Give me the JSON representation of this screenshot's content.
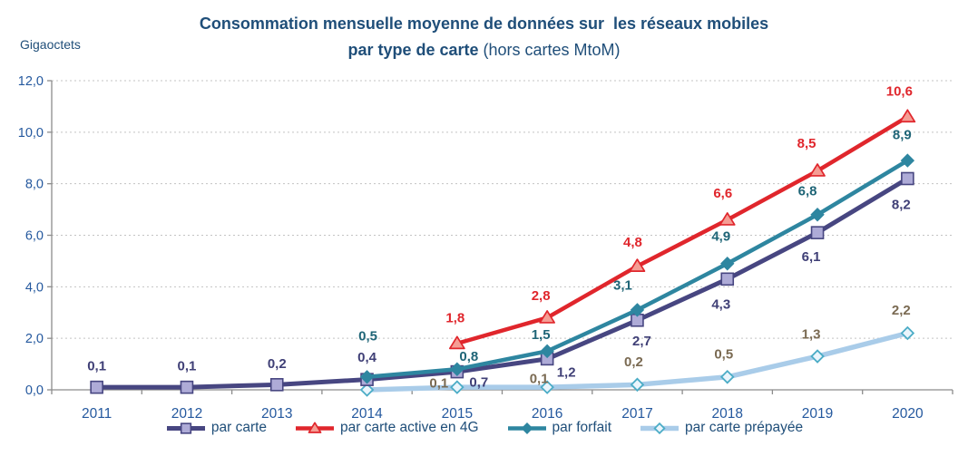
{
  "title": {
    "line1": "Consommation mensuelle moyenne de données sur  les réseaux mobiles",
    "line2_bold": "par type de carte",
    "line2_rest": " (hors cartes MtoM)"
  },
  "y_unit_label": "Gigaoctets",
  "chart_data": {
    "type": "line",
    "title": "Consommation mensuelle moyenne de données sur les réseaux mobiles par type de carte (hors cartes MtoM)",
    "ylabel": "Gigaoctets",
    "ylim": [
      0,
      12
    ],
    "ytick_step": 2,
    "ytick_labels": [
      "12,0",
      "10,0",
      "8,0",
      "6,0",
      "4,0",
      "2,0",
      "0,0"
    ],
    "categories": [
      "2011",
      "2012",
      "2013",
      "2014",
      "2015",
      "2016",
      "2017",
      "2018",
      "2019",
      "2020"
    ],
    "grid": "horizontal-dotted",
    "legend_position": "bottom",
    "series": [
      {
        "name": "par carte",
        "marker": "square",
        "line_color": "#474681",
        "marker_fill": "#AEABD7",
        "marker_stroke": "#474681",
        "label_color": "#3F3F76",
        "values": [
          0.1,
          0.1,
          0.2,
          0.4,
          0.7,
          1.2,
          2.7,
          4.3,
          6.1,
          8.2
        ],
        "labels": [
          "0,1",
          "0,1",
          "0,2",
          "0,4",
          "0,7",
          "1,2",
          "2,7",
          "4,3",
          "6,1",
          "8,2"
        ]
      },
      {
        "name": "par carte active en 4G",
        "marker": "triangle",
        "line_color": "#E0262C",
        "marker_fill": "#F59D94",
        "marker_stroke": "#E0262C",
        "label_color": "#E0262C",
        "values": [
          null,
          null,
          null,
          null,
          1.8,
          2.8,
          4.8,
          6.6,
          8.5,
          10.6
        ],
        "labels": [
          null,
          null,
          null,
          null,
          "1,8",
          "2,8",
          "4,8",
          "6,6",
          "8,5",
          "10,6"
        ]
      },
      {
        "name": "par forfait",
        "marker": "diamond",
        "line_color": "#2E86A0",
        "marker_fill": "#2E86A0",
        "marker_stroke": "#2E86A0",
        "label_color": "#1F6577",
        "values": [
          null,
          null,
          null,
          0.5,
          0.8,
          1.5,
          3.1,
          4.9,
          6.8,
          8.9
        ],
        "labels": [
          null,
          null,
          null,
          "0,5",
          "0,8",
          "1,5",
          "3,1",
          "4,9",
          "6,8",
          "8,9"
        ]
      },
      {
        "name": "par carte prépayée",
        "marker": "open-diamond",
        "line_color": "#A9CCE9",
        "marker_fill": "#EAF5FC",
        "marker_stroke": "#4BACC6",
        "label_color": "#7A6A52",
        "values": [
          null,
          null,
          null,
          0.0,
          0.1,
          0.1,
          0.2,
          0.5,
          1.3,
          2.2
        ],
        "labels": [
          null,
          null,
          null,
          null,
          "0,1",
          "0,1",
          "0,2",
          "0,5",
          "1,3",
          "2,2"
        ]
      }
    ]
  },
  "colors": {
    "title_text": "#1F4E79",
    "axis_labels": "#24589E",
    "axis_line": "#8C8C8C",
    "gridline": "#C3C3C3",
    "background": "#FFFFFF"
  }
}
